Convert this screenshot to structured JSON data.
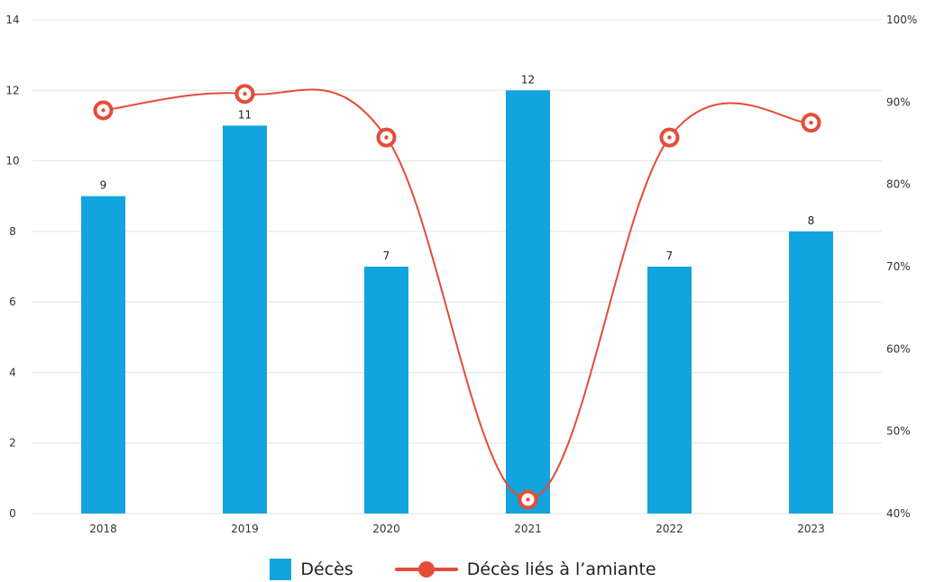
{
  "chart_data": {
    "type": "bar",
    "categories": [
      "2018",
      "2019",
      "2020",
      "2021",
      "2022",
      "2023"
    ],
    "series": [
      {
        "name": "Décès",
        "type": "bar",
        "axis": "left",
        "color": "#12a4df",
        "values": [
          9,
          11,
          7,
          12,
          7,
          8
        ],
        "data_labels": [
          "9",
          "11",
          "7",
          "12",
          "7",
          "8"
        ]
      },
      {
        "name": "Décès liés à l’amiante",
        "type": "line",
        "axis": "right",
        "color": "#e54c38",
        "smooth": true,
        "values": [
          0.89,
          0.91,
          0.857,
          0.417,
          0.857,
          0.875
        ]
      }
    ],
    "y_left": {
      "min": 0,
      "max": 14,
      "ticks": [
        "0",
        "2",
        "4",
        "6",
        "8",
        "10",
        "12",
        "14"
      ]
    },
    "y_right": {
      "min": 0.4,
      "max": 1.0,
      "ticks": [
        "40%",
        "50%",
        "60%",
        "70%",
        "80%",
        "90%",
        "100%"
      ]
    },
    "grid": true,
    "legend_position": "bottom-center"
  }
}
